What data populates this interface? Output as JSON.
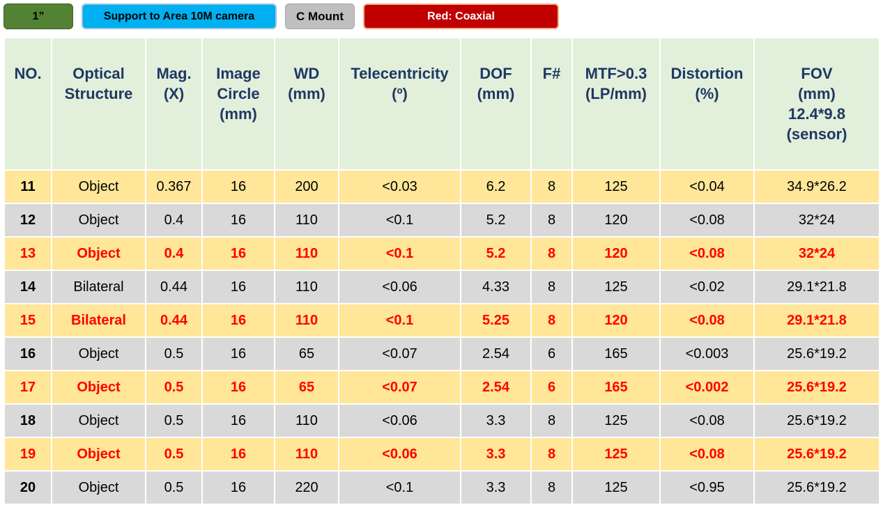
{
  "tags": {
    "format": "1”",
    "support": "Support to Area 10M camera",
    "mount": "C Mount",
    "legend": "Red: Coaxial"
  },
  "colors": {
    "header_bg": "#e2efda",
    "header_text": "#1f3864",
    "row_yellow": "#ffe699",
    "row_gray": "#d9d9d9",
    "coaxial_red": "#ff0000"
  },
  "table": {
    "headers": [
      "NO.",
      "Optical\nStructure",
      "Mag.\n(X)",
      "Image\nCircle\n(mm)",
      "WD\n(mm)",
      "Telecentricity\n(º)",
      "DOF\n(mm)",
      "F#",
      "MTF>0.3\n(LP/mm)",
      "Distortion\n(%)",
      "FOV\n(mm)\n12.4*9.8\n(sensor)"
    ],
    "rows": [
      {
        "style": "yellow",
        "coaxial": false,
        "cells": [
          "11",
          "Object",
          "0.367",
          "16",
          "200",
          "<0.03",
          "6.2",
          "8",
          "125",
          "<0.04",
          "34.9*26.2"
        ]
      },
      {
        "style": "gray",
        "coaxial": false,
        "cells": [
          "12",
          "Object",
          "0.4",
          "16",
          "110",
          "<0.1",
          "5.2",
          "8",
          "120",
          "<0.08",
          "32*24"
        ]
      },
      {
        "style": "yellow",
        "coaxial": true,
        "cells": [
          "13",
          "Object",
          "0.4",
          "16",
          "110",
          "<0.1",
          "5.2",
          "8",
          "120",
          "<0.08",
          "32*24"
        ]
      },
      {
        "style": "gray",
        "coaxial": false,
        "cells": [
          "14",
          "Bilateral",
          "0.44",
          "16",
          "110",
          "<0.06",
          "4.33",
          "8",
          "125",
          "<0.02",
          "29.1*21.8"
        ]
      },
      {
        "style": "yellow",
        "coaxial": true,
        "cells": [
          "15",
          "Bilateral",
          "0.44",
          "16",
          "110",
          "<0.1",
          "5.25",
          "8",
          "120",
          "<0.08",
          "29.1*21.8"
        ]
      },
      {
        "style": "gray",
        "coaxial": false,
        "cells": [
          "16",
          "Object",
          "0.5",
          "16",
          "65",
          "<0.07",
          "2.54",
          "6",
          "165",
          "<0.003",
          "25.6*19.2"
        ]
      },
      {
        "style": "yellow",
        "coaxial": true,
        "cells": [
          "17",
          "Object",
          "0.5",
          "16",
          "65",
          "<0.07",
          "2.54",
          "6",
          "165",
          "<0.002",
          "25.6*19.2"
        ]
      },
      {
        "style": "gray",
        "coaxial": false,
        "cells": [
          "18",
          "Object",
          "0.5",
          "16",
          "110",
          "<0.06",
          "3.3",
          "8",
          "125",
          "<0.08",
          "25.6*19.2"
        ]
      },
      {
        "style": "yellow",
        "coaxial": true,
        "cells": [
          "19",
          "Object",
          "0.5",
          "16",
          "110",
          "<0.06",
          "3.3",
          "8",
          "125",
          "<0.08",
          "25.6*19.2"
        ]
      },
      {
        "style": "gray",
        "coaxial": false,
        "cells": [
          "20",
          "Object",
          "0.5",
          "16",
          "220",
          "<0.1",
          "3.3",
          "8",
          "125",
          "<0.95",
          "25.6*19.2"
        ]
      }
    ]
  }
}
